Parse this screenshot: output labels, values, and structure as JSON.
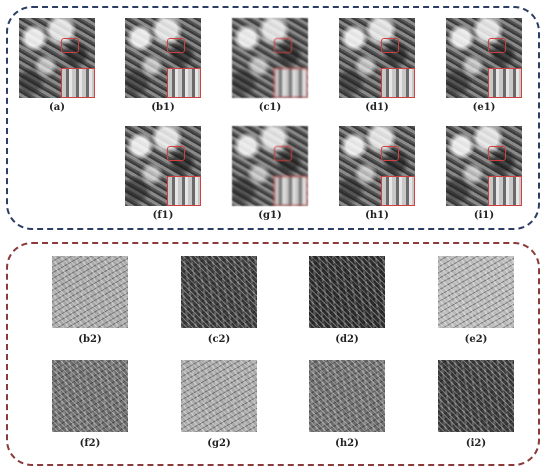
{
  "figure": {
    "top_panel": {
      "border_color": "#2c3e63",
      "row1_labels": [
        "(a)",
        "(b1)",
        "(c1)",
        "(d1)",
        "(e1)"
      ],
      "row2_labels": [
        "(f1)",
        "(g1)",
        "(h1)",
        "(i1)"
      ]
    },
    "bottom_panel": {
      "border_color": "#8a3a3a",
      "row1_labels": [
        "(b2)",
        "(c2)",
        "(d2)",
        "(e2)"
      ],
      "row2_labels": [
        "(f2)",
        "(g2)",
        "(h2)",
        "(i2)"
      ]
    },
    "highlight_color": "#d04040"
  }
}
